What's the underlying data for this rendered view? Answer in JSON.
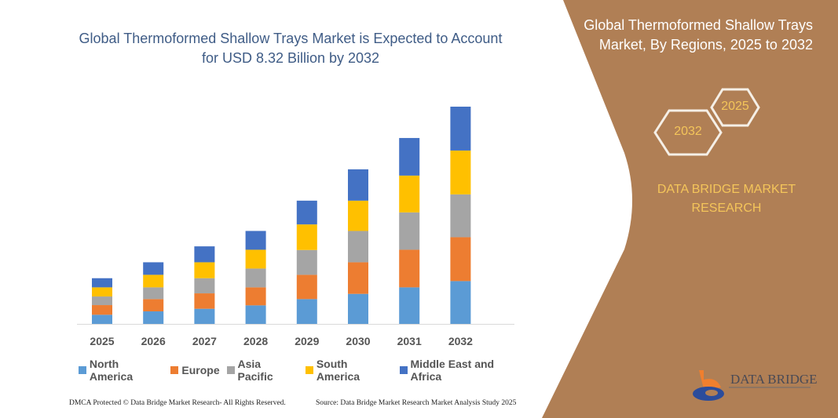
{
  "chart_data": {
    "type": "bar",
    "stacked": true,
    "title": "Global Thermoformed Shallow Trays Market is Expected to Account for USD 8.32 Billion by 2032",
    "categories": [
      "2025",
      "2026",
      "2027",
      "2028",
      "2029",
      "2030",
      "2031",
      "2032"
    ],
    "series": [
      {
        "name": "North America",
        "color": "#5B9BD5",
        "values": [
          0.35,
          0.48,
          0.58,
          0.71,
          0.95,
          1.15,
          1.4,
          1.64
        ]
      },
      {
        "name": "Europe",
        "color": "#ED7D31",
        "values": [
          0.37,
          0.47,
          0.59,
          0.69,
          0.93,
          1.21,
          1.44,
          1.68
        ]
      },
      {
        "name": "Asia Pacific",
        "color": "#A5A5A5",
        "values": [
          0.33,
          0.45,
          0.58,
          0.72,
          0.95,
          1.2,
          1.43,
          1.64
        ]
      },
      {
        "name": "South America",
        "color": "#FFC000",
        "values": [
          0.35,
          0.48,
          0.61,
          0.72,
          0.98,
          1.16,
          1.41,
          1.68
        ]
      },
      {
        "name": "Middle East and Africa",
        "color": "#4472C4",
        "values": [
          0.35,
          0.48,
          0.61,
          0.72,
          0.91,
          1.2,
          1.44,
          1.68
        ]
      }
    ],
    "xlabel": "",
    "ylabel": "",
    "grid": false,
    "legend": "bottom"
  },
  "side_panel": {
    "title": "Global Thermoformed Shallow Trays Market, By Regions, 2025 to 2032",
    "hex_start": "2025",
    "hex_end": "2032",
    "brand": "DATA BRIDGE MARKET RESEARCH",
    "logo_text": "DATA BRIDGE",
    "color": "#B07F55"
  },
  "footer": {
    "left": "DMCA Protected © Data Bridge Market Research- All Rights Reserved.",
    "right": "Source: Data Bridge Market Research Market Analysis Study 2025"
  }
}
